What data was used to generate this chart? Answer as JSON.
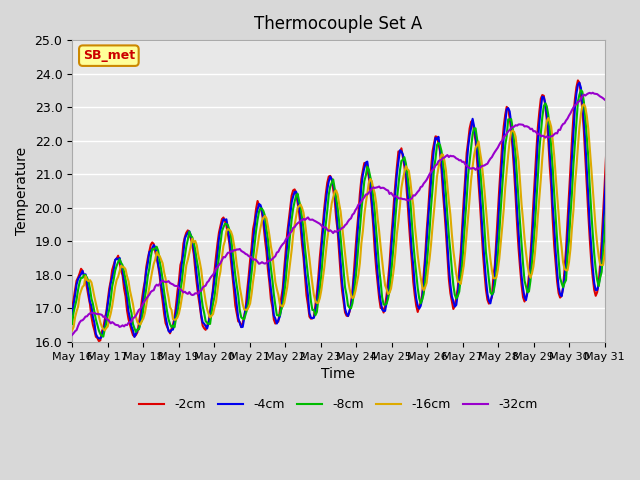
{
  "title": "Thermocouple Set A",
  "xlabel": "Time",
  "ylabel": "Temperature",
  "ylim": [
    16.0,
    25.0
  ],
  "yticks": [
    16.0,
    17.0,
    18.0,
    19.0,
    20.0,
    21.0,
    22.0,
    23.0,
    24.0,
    25.0
  ],
  "xtick_labels": [
    "May 16",
    "May 17",
    "May 18",
    "May 19",
    "May 20",
    "May 21",
    "May 22",
    "May 23",
    "May 24",
    "May 25",
    "May 26",
    "May 27",
    "May 28",
    "May 29",
    "May 30",
    "May 31"
  ],
  "series_labels": [
    "-2cm",
    "-4cm",
    "-8cm",
    "-16cm",
    "-32cm"
  ],
  "series_colors": [
    "#dd0000",
    "#0000ee",
    "#00bb00",
    "#ddaa00",
    "#9900cc"
  ],
  "annotation_text": "SB_met",
  "annotation_color": "#cc0000",
  "annotation_bg": "#ffff99",
  "annotation_border": "#cc8800",
  "fig_bg": "#d8d8d8",
  "plot_bg": "#e8e8e8",
  "grid_color": "#ffffff",
  "linewidth": 1.5
}
